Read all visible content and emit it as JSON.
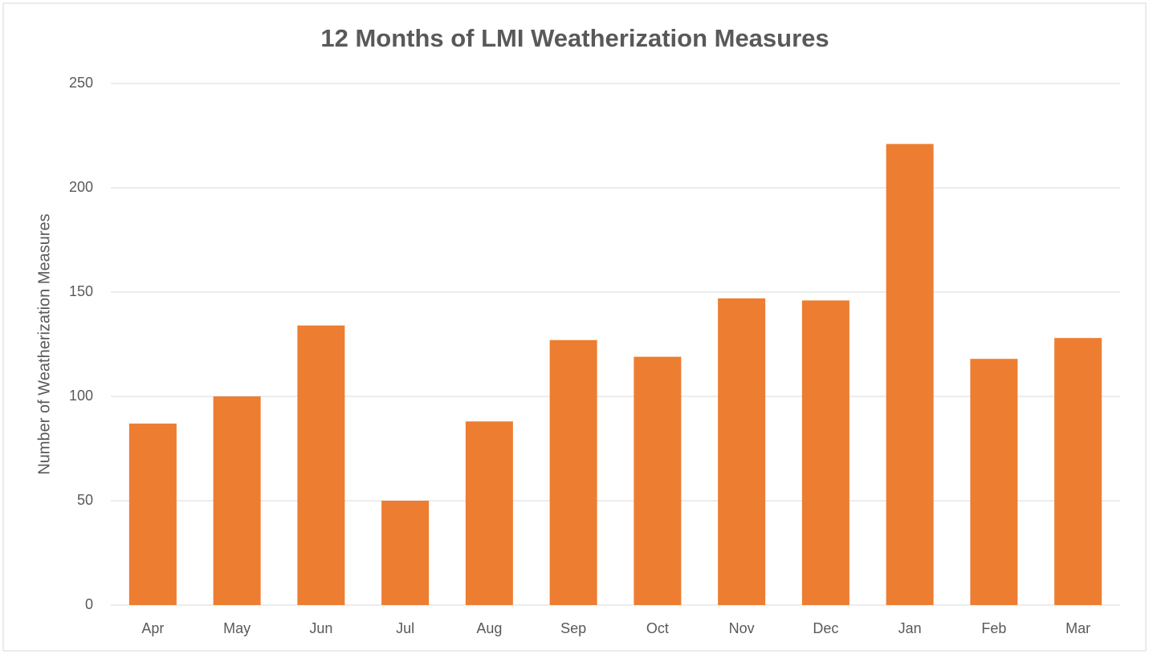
{
  "chart_data": {
    "type": "bar",
    "title": "12 Months of LMI Weatherization Measures",
    "y_label": "Number of Weatherization Measures",
    "categories": [
      "Apr",
      "May",
      "Jun",
      "Jul",
      "Aug",
      "Sep",
      "Oct",
      "Nov",
      "Dec",
      "Jan",
      "Feb",
      "Mar"
    ],
    "values": [
      87,
      100,
      134,
      50,
      88,
      127,
      119,
      147,
      146,
      221,
      118,
      128
    ],
    "color": "#ed7d31",
    "ylim": [
      0,
      250
    ],
    "yticks": [
      0,
      50,
      100,
      150,
      200,
      250
    ],
    "grid": true
  }
}
